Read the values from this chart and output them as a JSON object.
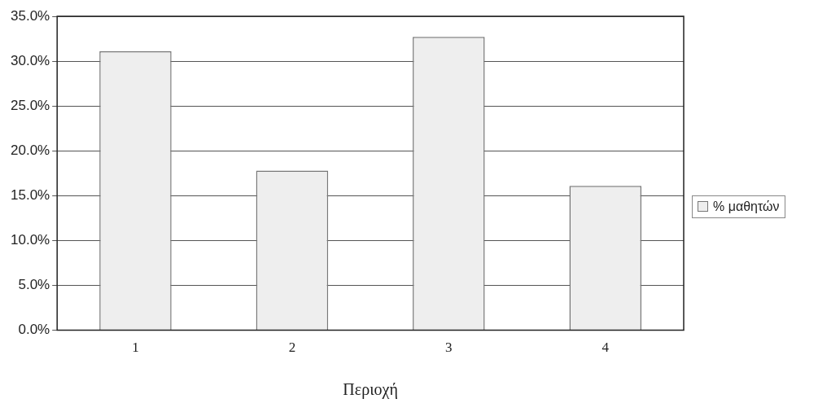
{
  "chart_data": {
    "type": "bar",
    "xlabel": "Περιοχή",
    "categories": [
      "1",
      "2",
      "3",
      "4"
    ],
    "series": [
      {
        "name": "% μαθητών",
        "color": "#eeeeee",
        "values": [
          31.1,
          17.8,
          32.7,
          16.1
        ]
      }
    ],
    "ylim": [
      0,
      35
    ],
    "yticks": [
      {
        "value": 0,
        "label": "0.0%"
      },
      {
        "value": 5,
        "label": "5.0%"
      },
      {
        "value": 10,
        "label": "10.0%"
      },
      {
        "value": 15,
        "label": "15.0%"
      },
      {
        "value": 20,
        "label": "20.0%"
      },
      {
        "value": 25,
        "label": "25.0%"
      },
      {
        "value": 30,
        "label": "30.0%"
      },
      {
        "value": 35,
        "label": "35.0%"
      }
    ],
    "grid": "y",
    "legend": "right"
  }
}
